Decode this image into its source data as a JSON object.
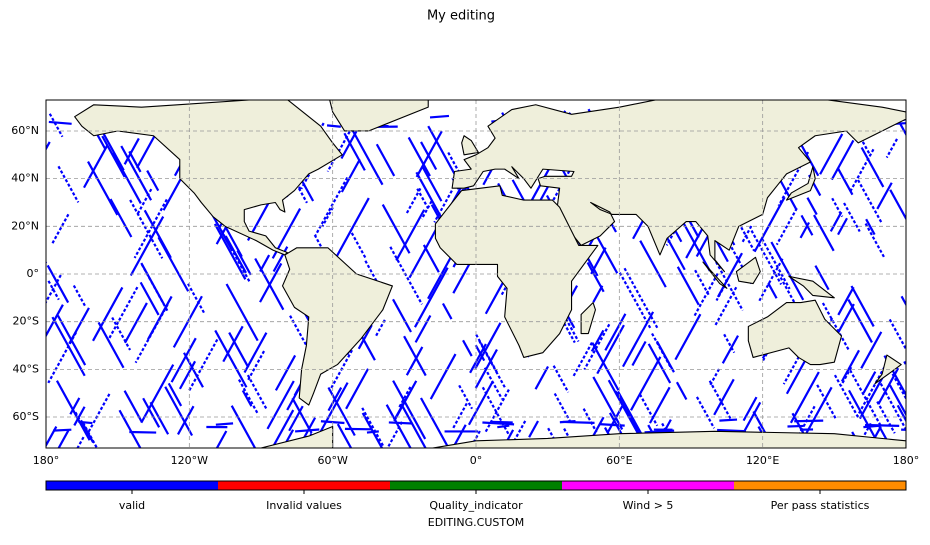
{
  "chart_data": {
    "type": "map",
    "title": "My editing",
    "xlim": [
      -180,
      180
    ],
    "ylim": [
      -73,
      73
    ],
    "xticks": [
      {
        "value": -180,
        "label": "180°"
      },
      {
        "value": -120,
        "label": "120°W"
      },
      {
        "value": -60,
        "label": "60°W"
      },
      {
        "value": 0,
        "label": "0°"
      },
      {
        "value": 60,
        "label": "60°E"
      },
      {
        "value": 120,
        "label": "120°E"
      },
      {
        "value": 180,
        "label": "180°"
      }
    ],
    "yticks": [
      {
        "value": -60,
        "label": "60°S"
      },
      {
        "value": -40,
        "label": "40°S"
      },
      {
        "value": -20,
        "label": "20°S"
      },
      {
        "value": 0,
        "label": "0°"
      },
      {
        "value": 20,
        "label": "20°N"
      },
      {
        "value": 40,
        "label": "40°N"
      },
      {
        "value": 60,
        "label": "60°N"
      }
    ],
    "grid": true,
    "track_color": "#0000ff",
    "land_color": "#efefdb",
    "colorbar": {
      "label": "EDITING.CUSTOM",
      "categories": [
        "valid",
        "Invalid values",
        "Quality_indicator",
        "Wind > 5",
        "Per pass statistics"
      ],
      "colors": [
        "#0000ff",
        "#ff0000",
        "#008000",
        "#ff00ff",
        "#ff8c00"
      ]
    }
  }
}
